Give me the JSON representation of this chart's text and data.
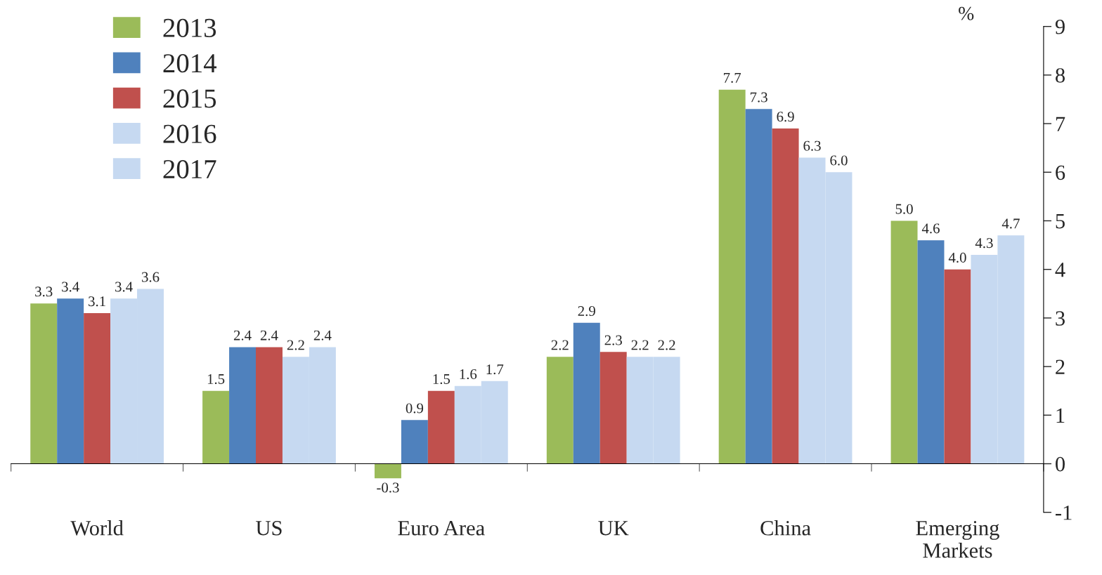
{
  "chart_data": {
    "type": "bar",
    "ylabel": "%",
    "categories": [
      "World",
      "US",
      "Euro Area",
      "UK",
      "China",
      "Emerging\nMarkets"
    ],
    "series": [
      {
        "name": "2013",
        "color": "#9bbb59",
        "values": [
          3.3,
          1.5,
          -0.3,
          2.2,
          7.7,
          5.0
        ],
        "value_labels": [
          "3.3",
          "1.5",
          "-0.3",
          "2.2",
          "7.7",
          "5.0"
        ]
      },
      {
        "name": "2014",
        "color": "#4f81bd",
        "values": [
          3.4,
          2.4,
          0.9,
          2.9,
          7.3,
          4.6
        ],
        "value_labels": [
          "3.4",
          "2.4",
          "0.9",
          "2.9",
          "7.3",
          "4.6"
        ]
      },
      {
        "name": "2015",
        "color": "#c0504d",
        "values": [
          3.1,
          2.4,
          1.5,
          2.3,
          6.9,
          4.0
        ],
        "value_labels": [
          "3.1",
          "2.4",
          "1.5",
          "2.3",
          "6.9",
          "4.0"
        ]
      },
      {
        "name": "2016",
        "color": "#c6d9f1",
        "values": [
          3.4,
          2.2,
          1.6,
          2.2,
          6.3,
          4.3
        ],
        "value_labels": [
          "3.4",
          "2.2",
          "1.6",
          "2.2",
          "6.3",
          "4.3"
        ]
      },
      {
        "name": "2017",
        "color": "#c6d9f1",
        "values": [
          3.6,
          2.4,
          1.7,
          2.2,
          6.0,
          4.7
        ],
        "value_labels": [
          "3.6",
          "2.4",
          "1.7",
          "2.2",
          "6.0",
          "4.7"
        ]
      }
    ],
    "ylim": [
      -1,
      9
    ],
    "yticks": [
      -1,
      0,
      1,
      2,
      3,
      4,
      5,
      6,
      7,
      8,
      9
    ],
    "legend": "top left"
  }
}
